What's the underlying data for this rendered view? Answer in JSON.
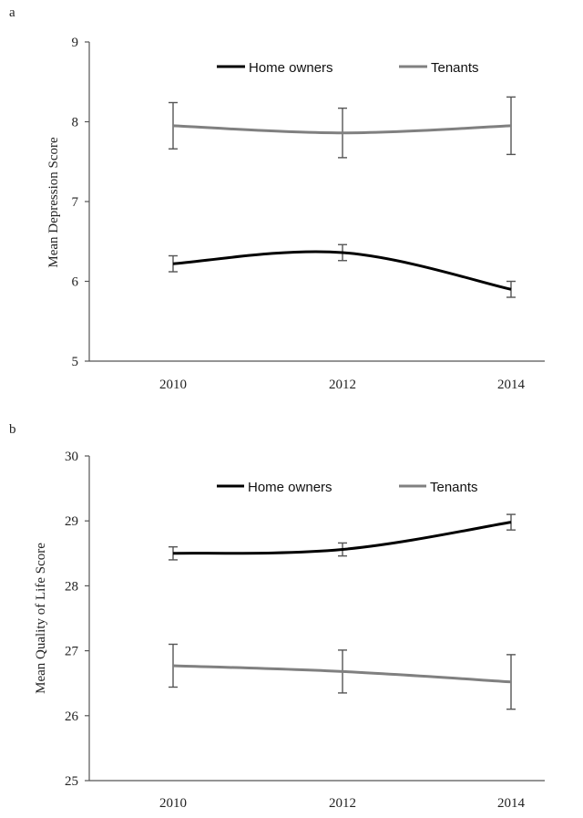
{
  "chart_data": [
    {
      "panel_label": "a",
      "type": "line",
      "ylabel": "Mean Depression  Score",
      "xlabel": "",
      "categories": [
        "2010",
        "2012",
        "2014"
      ],
      "yticks": [
        "5",
        "6",
        "7",
        "8",
        "9"
      ],
      "ylim": [
        5,
        9
      ],
      "grid": false,
      "legend_position": "top",
      "series": [
        {
          "name": "Home owners",
          "color": "#000000",
          "values": [
            6.22,
            6.36,
            5.9
          ],
          "error": [
            0.1,
            0.1,
            0.1
          ]
        },
        {
          "name": "Tenants",
          "color": "#808080",
          "values": [
            7.95,
            7.86,
            7.95
          ],
          "error": [
            0.29,
            0.31,
            0.36
          ]
        }
      ]
    },
    {
      "panel_label": "b",
      "type": "line",
      "ylabel": "Mean Quality  of Life Score",
      "xlabel": "",
      "categories": [
        "2010",
        "2012",
        "2014"
      ],
      "yticks": [
        "25",
        "26",
        "27",
        "28",
        "29",
        "30"
      ],
      "ylim": [
        25,
        30
      ],
      "grid": false,
      "legend_position": "top",
      "series": [
        {
          "name": "Home owners",
          "color": "#000000",
          "values": [
            28.5,
            28.56,
            28.98
          ],
          "error": [
            0.1,
            0.1,
            0.12
          ]
        },
        {
          "name": "Tenants",
          "color": "#808080",
          "values": [
            26.77,
            26.68,
            26.52
          ],
          "error": [
            0.33,
            0.33,
            0.42
          ]
        }
      ]
    }
  ]
}
